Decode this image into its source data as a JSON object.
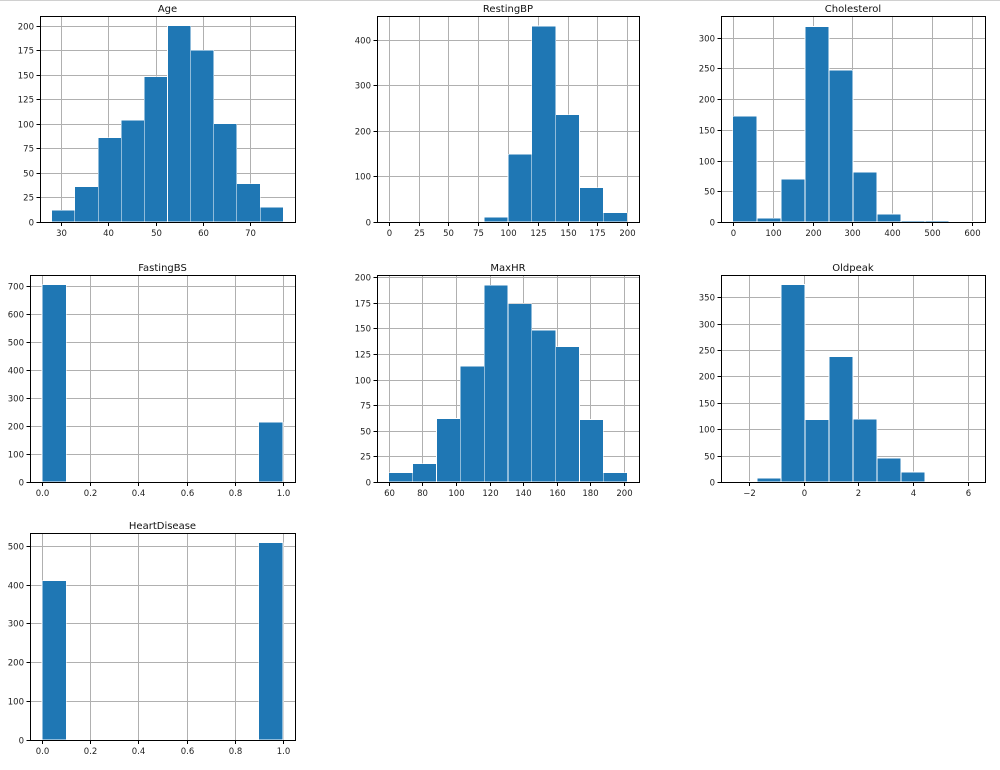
{
  "style": {
    "bar_color": "#1f77b4",
    "bar_edge": "#ffffff",
    "grid": true
  },
  "chart_data": [
    {
      "type": "bar",
      "title": "Age",
      "bin_edges": [
        28,
        32.9,
        37.8,
        42.7,
        47.6,
        52.5,
        57.4,
        62.3,
        67.2,
        72.1,
        77
      ],
      "values": [
        12,
        36,
        86,
        104,
        148,
        200,
        175,
        100,
        39,
        15
      ],
      "xlim": [
        25.5,
        79.5
      ],
      "ylim": [
        0,
        210
      ],
      "xticks": [
        30,
        40,
        50,
        60,
        70
      ],
      "xtick_labels": [
        "30",
        "40",
        "50",
        "60",
        "70"
      ],
      "yticks": [
        0,
        25,
        50,
        75,
        100,
        125,
        150,
        175,
        200
      ],
      "ytick_labels": [
        "0",
        "25",
        "50",
        "75",
        "100",
        "125",
        "150",
        "175",
        "200"
      ]
    },
    {
      "type": "bar",
      "title": "RestingBP",
      "bin_edges": [
        0,
        20,
        40,
        60,
        80,
        100,
        120,
        140,
        160,
        180,
        200
      ],
      "values": [
        1,
        0,
        0,
        0,
        11,
        149,
        430,
        235,
        75,
        20
      ],
      "xlim": [
        -10,
        210
      ],
      "ylim": [
        0,
        452
      ],
      "xticks": [
        0,
        25,
        50,
        75,
        100,
        125,
        150,
        175,
        200
      ],
      "xtick_labels": [
        "0",
        "25",
        "50",
        "75",
        "100",
        "125",
        "150",
        "175",
        "200"
      ],
      "yticks": [
        0,
        100,
        200,
        300,
        400
      ],
      "ytick_labels": [
        "0",
        "100",
        "200",
        "300",
        "400"
      ]
    },
    {
      "type": "bar",
      "title": "Cholesterol",
      "bin_edges": [
        0,
        60.3,
        120.6,
        180.9,
        241.2,
        301.5,
        361.8,
        422.1,
        482.4,
        542.7,
        603
      ],
      "values": [
        172,
        6,
        70,
        318,
        247,
        81,
        13,
        2,
        2,
        1
      ],
      "xlim": [
        -30,
        633
      ],
      "ylim": [
        0,
        335
      ],
      "xticks": [
        0,
        100,
        200,
        300,
        400,
        500,
        600
      ],
      "xtick_labels": [
        "0",
        "100",
        "200",
        "300",
        "400",
        "500",
        "600"
      ],
      "yticks": [
        0,
        50,
        100,
        150,
        200,
        250,
        300
      ],
      "ytick_labels": [
        "0",
        "50",
        "100",
        "150",
        "200",
        "250",
        "300"
      ]
    },
    {
      "type": "bar",
      "title": "FastingBS",
      "bin_edges": [
        0,
        0.1,
        0.2,
        0.3,
        0.4,
        0.5,
        0.6,
        0.7,
        0.8,
        0.9,
        1.0
      ],
      "values": [
        704,
        0,
        0,
        0,
        0,
        0,
        0,
        0,
        0,
        214
      ],
      "xlim": [
        -0.05,
        1.05
      ],
      "ylim": [
        0,
        739
      ],
      "xticks": [
        0,
        0.2,
        0.4,
        0.6,
        0.8,
        1.0
      ],
      "xtick_labels": [
        "0.0",
        "0.2",
        "0.4",
        "0.6",
        "0.8",
        "1.0"
      ],
      "yticks": [
        0,
        100,
        200,
        300,
        400,
        500,
        600,
        700
      ],
      "ytick_labels": [
        "0",
        "100",
        "200",
        "300",
        "400",
        "500",
        "600",
        "700"
      ]
    },
    {
      "type": "bar",
      "title": "MaxHR",
      "bin_edges": [
        60,
        74.2,
        88.4,
        102.6,
        116.8,
        131,
        145.2,
        159.4,
        173.6,
        187.8,
        202
      ],
      "values": [
        9,
        18,
        62,
        113,
        192,
        174,
        148,
        132,
        61,
        9
      ],
      "xlim": [
        52.9,
        209.1
      ],
      "ylim": [
        0,
        202
      ],
      "xticks": [
        60,
        80,
        100,
        120,
        140,
        160,
        180,
        200
      ],
      "xtick_labels": [
        "60",
        "80",
        "100",
        "120",
        "140",
        "160",
        "180",
        "200"
      ],
      "yticks": [
        0,
        25,
        50,
        75,
        100,
        125,
        150,
        175,
        200
      ],
      "ytick_labels": [
        "0",
        "25",
        "50",
        "75",
        "100",
        "125",
        "150",
        "175",
        "200"
      ]
    },
    {
      "type": "bar",
      "title": "Oldpeak",
      "bin_edges": [
        -2.6,
        -1.72,
        -0.84,
        0.04,
        0.92,
        1.8,
        2.68,
        3.56,
        4.44,
        5.32,
        6.2
      ],
      "values": [
        1,
        7,
        374,
        118,
        237,
        119,
        45,
        19,
        1,
        1
      ],
      "xlim": [
        -3.04,
        6.64
      ],
      "ylim": [
        0,
        392
      ],
      "xticks": [
        -2,
        0,
        2,
        4,
        6
      ],
      "xtick_labels": [
        "−2",
        "0",
        "2",
        "4",
        "6"
      ],
      "yticks": [
        0,
        50,
        100,
        150,
        200,
        250,
        300,
        350
      ],
      "ytick_labels": [
        "0",
        "50",
        "100",
        "150",
        "200",
        "250",
        "300",
        "350"
      ]
    },
    {
      "type": "bar",
      "title": "HeartDisease",
      "bin_edges": [
        0,
        0.1,
        0.2,
        0.3,
        0.4,
        0.5,
        0.6,
        0.7,
        0.8,
        0.9,
        1.0
      ],
      "values": [
        410,
        0,
        0,
        0,
        0,
        0,
        0,
        0,
        0,
        508
      ],
      "xlim": [
        -0.05,
        1.05
      ],
      "ylim": [
        0,
        533
      ],
      "xticks": [
        0,
        0.2,
        0.4,
        0.6,
        0.8,
        1.0
      ],
      "xtick_labels": [
        "0.0",
        "0.2",
        "0.4",
        "0.6",
        "0.8",
        "1.0"
      ],
      "yticks": [
        0,
        100,
        200,
        300,
        400,
        500
      ],
      "ytick_labels": [
        "0",
        "100",
        "200",
        "300",
        "400",
        "500"
      ]
    }
  ]
}
